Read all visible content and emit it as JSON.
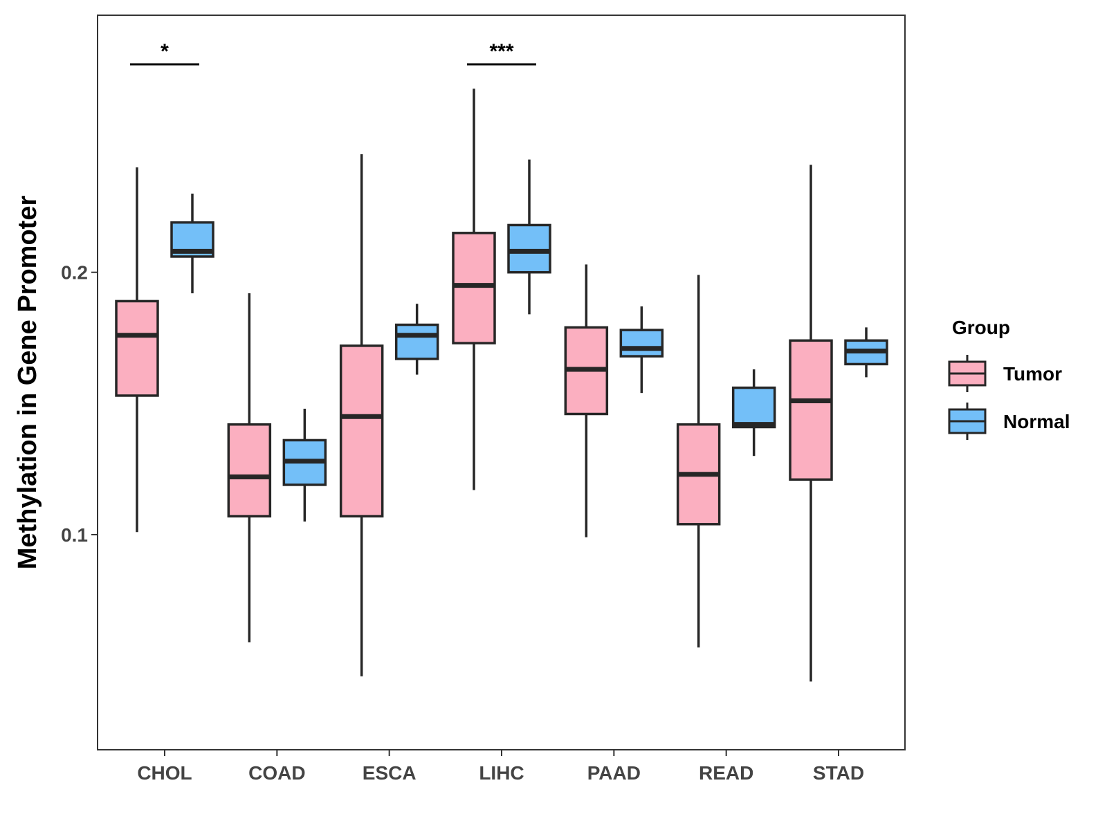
{
  "chart_data": {
    "type": "boxplot",
    "title": "",
    "xlabel": "",
    "ylabel": "Methylation in Gene Promoter",
    "ylim": [
      0.018,
      0.298
    ],
    "yticks": [
      0.1,
      0.2
    ],
    "ytick_labels": [
      "0.1",
      "0.2"
    ],
    "categories": [
      "CHOL",
      "COAD",
      "ESCA",
      "LIHC",
      "PAAD",
      "READ",
      "STAD"
    ],
    "grid": false,
    "legend": {
      "title": "Group",
      "position": "right",
      "entries": [
        "Tumor",
        "Normal"
      ]
    },
    "colors": {
      "Tumor": "#FBAFC0",
      "Normal": "#73BFF8",
      "outline": "#262626"
    },
    "series": [
      {
        "name": "Tumor",
        "boxes": [
          {
            "category": "CHOL",
            "min": 0.101,
            "q1": 0.153,
            "median": 0.176,
            "q3": 0.189,
            "max": 0.24
          },
          {
            "category": "COAD",
            "min": 0.059,
            "q1": 0.107,
            "median": 0.122,
            "q3": 0.142,
            "max": 0.192
          },
          {
            "category": "ESCA",
            "min": 0.046,
            "q1": 0.107,
            "median": 0.145,
            "q3": 0.172,
            "max": 0.245
          },
          {
            "category": "LIHC",
            "min": 0.117,
            "q1": 0.173,
            "median": 0.195,
            "q3": 0.215,
            "max": 0.27
          },
          {
            "category": "PAAD",
            "min": 0.099,
            "q1": 0.146,
            "median": 0.163,
            "q3": 0.179,
            "max": 0.203
          },
          {
            "category": "READ",
            "min": 0.057,
            "q1": 0.104,
            "median": 0.123,
            "q3": 0.142,
            "max": 0.199
          },
          {
            "category": "STAD",
            "min": 0.044,
            "q1": 0.121,
            "median": 0.151,
            "q3": 0.174,
            "max": 0.241
          }
        ]
      },
      {
        "name": "Normal",
        "boxes": [
          {
            "category": "CHOL",
            "min": 0.192,
            "q1": 0.206,
            "median": 0.208,
            "q3": 0.219,
            "max": 0.23
          },
          {
            "category": "COAD",
            "min": 0.105,
            "q1": 0.119,
            "median": 0.128,
            "q3": 0.136,
            "max": 0.148
          },
          {
            "category": "ESCA",
            "min": 0.161,
            "q1": 0.167,
            "median": 0.176,
            "q3": 0.18,
            "max": 0.188
          },
          {
            "category": "LIHC",
            "min": 0.184,
            "q1": 0.2,
            "median": 0.208,
            "q3": 0.218,
            "max": 0.243
          },
          {
            "category": "PAAD",
            "min": 0.154,
            "q1": 0.168,
            "median": 0.171,
            "q3": 0.178,
            "max": 0.187
          },
          {
            "category": "READ",
            "min": 0.13,
            "q1": 0.141,
            "median": 0.142,
            "q3": 0.156,
            "max": 0.163
          },
          {
            "category": "STAD",
            "min": 0.16,
            "q1": 0.165,
            "median": 0.17,
            "q3": 0.174,
            "max": 0.179
          }
        ]
      }
    ],
    "annotations": [
      {
        "category": "CHOL",
        "label": "*"
      },
      {
        "category": "LIHC",
        "label": "***"
      }
    ]
  }
}
